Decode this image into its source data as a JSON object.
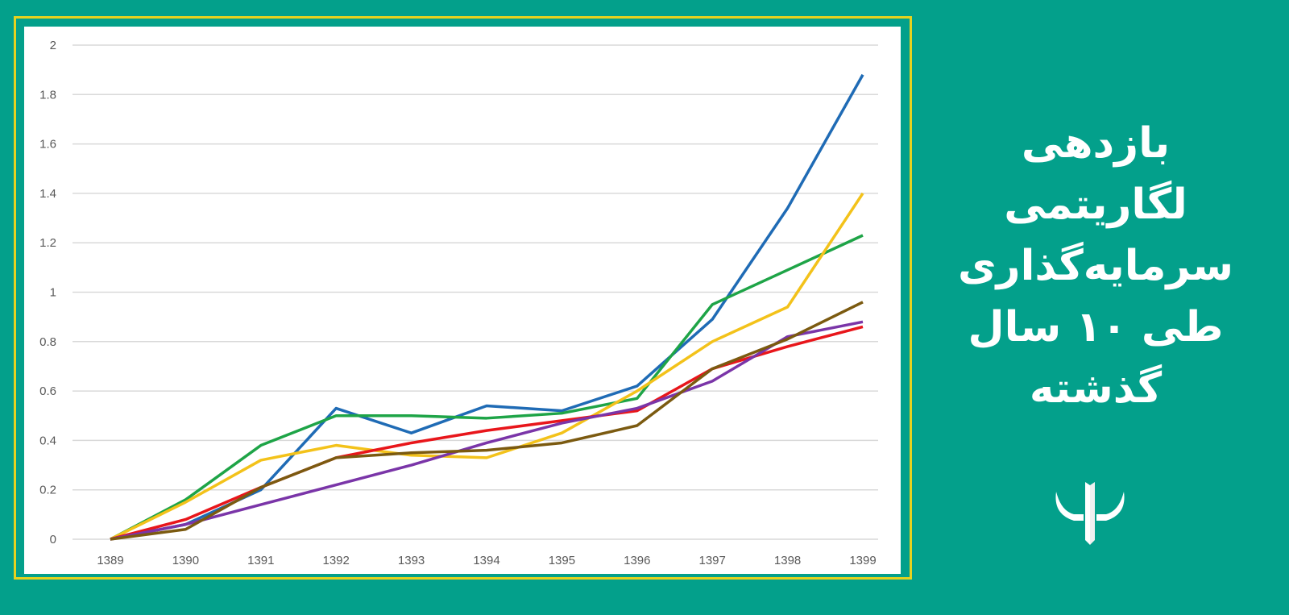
{
  "title_lines": [
    "بازدهی",
    "لگاریتمی",
    "سرمایه‌گذاری",
    "طی ۱۰ سال",
    "گذشته"
  ],
  "colors": {
    "background": "#03a08b",
    "frame": "#e6d21e"
  },
  "chart_data": {
    "type": "line",
    "title": "",
    "xlabel": "",
    "ylabel": "",
    "x": [
      "1389",
      "1390",
      "1391",
      "1392",
      "1393",
      "1394",
      "1395",
      "1396",
      "1397",
      "1398",
      "1399"
    ],
    "ylim": [
      0,
      2
    ],
    "yticks": [
      "0",
      "0.2",
      "0.4",
      "0.6",
      "0.8",
      "1",
      "1.2",
      "1.4",
      "1.6",
      "1.8",
      "2"
    ],
    "grid": true,
    "legend": "none",
    "series": [
      {
        "name": "blue",
        "color": "#1f6bb5",
        "values": [
          0,
          0.06,
          0.2,
          0.53,
          0.43,
          0.54,
          0.52,
          0.62,
          0.89,
          1.34,
          1.88
        ]
      },
      {
        "name": "green",
        "color": "#1ea447",
        "values": [
          0,
          0.16,
          0.38,
          0.5,
          0.5,
          0.49,
          0.51,
          0.57,
          0.95,
          1.09,
          1.23
        ]
      },
      {
        "name": "yellow",
        "color": "#f3c21a",
        "values": [
          0,
          0.15,
          0.32,
          0.38,
          0.34,
          0.33,
          0.43,
          0.6,
          0.8,
          0.94,
          1.4
        ]
      },
      {
        "name": "red",
        "color": "#e8161b",
        "values": [
          0,
          0.08,
          0.21,
          0.33,
          0.39,
          0.44,
          0.48,
          0.52,
          0.69,
          0.78,
          0.86
        ]
      },
      {
        "name": "purple",
        "color": "#7a35a8",
        "values": [
          0,
          0.06,
          0.14,
          0.22,
          0.3,
          0.39,
          0.47,
          0.53,
          0.64,
          0.82,
          0.88
        ]
      },
      {
        "name": "brown",
        "color": "#7b5a10",
        "values": [
          0,
          0.04,
          0.21,
          0.33,
          0.35,
          0.36,
          0.39,
          0.46,
          0.69,
          0.81,
          0.96
        ]
      }
    ]
  }
}
